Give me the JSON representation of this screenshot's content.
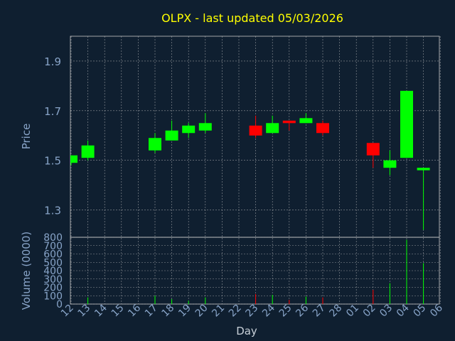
{
  "chart_data": {
    "type": "candlestick",
    "title": "OLPX - last updated 05/03/2026",
    "xlabel": "Day",
    "colors": {
      "background": "#0f1f30",
      "grid": "#c8c8c8",
      "axis_text": "#88a4c8",
      "title": "#ffff00",
      "up": "#00ff00",
      "down": "#ff0000"
    },
    "x_ticks": [
      "12",
      "13",
      "14",
      "15",
      "16",
      "17",
      "18",
      "19",
      "20",
      "21",
      "22",
      "23",
      "24",
      "25",
      "26",
      "27",
      "28",
      "01",
      "02",
      "03",
      "04",
      "05",
      "06"
    ],
    "price_panel": {
      "ylabel": "Price",
      "ylim": [
        1.19,
        2.0
      ],
      "y_ticks": [
        "1.3",
        "1.5",
        "1.7",
        "1.9"
      ],
      "candles": [
        {
          "day": "12",
          "open": 1.49,
          "high": 1.52,
          "low": 1.48,
          "close": 1.52
        },
        {
          "day": "13",
          "open": 1.51,
          "high": 1.58,
          "low": 1.5,
          "close": 1.56
        },
        {
          "day": "17",
          "open": 1.54,
          "high": 1.61,
          "low": 1.53,
          "close": 1.59
        },
        {
          "day": "18",
          "open": 1.58,
          "high": 1.66,
          "low": 1.58,
          "close": 1.62
        },
        {
          "day": "19",
          "open": 1.61,
          "high": 1.65,
          "low": 1.59,
          "close": 1.64
        },
        {
          "day": "20",
          "open": 1.62,
          "high": 1.69,
          "low": 1.61,
          "close": 1.65
        },
        {
          "day": "23",
          "open": 1.64,
          "high": 1.68,
          "low": 1.59,
          "close": 1.6
        },
        {
          "day": "24",
          "open": 1.61,
          "high": 1.68,
          "low": 1.61,
          "close": 1.65
        },
        {
          "day": "25",
          "open": 1.66,
          "high": 1.66,
          "low": 1.62,
          "close": 1.65
        },
        {
          "day": "26",
          "open": 1.65,
          "high": 1.69,
          "low": 1.65,
          "close": 1.67
        },
        {
          "day": "27",
          "open": 1.65,
          "high": 1.66,
          "low": 1.6,
          "close": 1.61
        },
        {
          "day": "02",
          "open": 1.57,
          "high": 1.57,
          "low": 1.47,
          "close": 1.52
        },
        {
          "day": "03",
          "open": 1.47,
          "high": 1.54,
          "low": 1.44,
          "close": 1.5
        },
        {
          "day": "04",
          "open": 1.51,
          "high": 1.78,
          "low": 1.51,
          "close": 1.78
        },
        {
          "day": "05",
          "open": 1.46,
          "high": 1.47,
          "low": 1.22,
          "close": 1.47
        }
      ]
    },
    "volume_panel": {
      "ylabel": "Volume (0000)",
      "ylim": [
        0,
        800
      ],
      "y_ticks": [
        "0",
        "100",
        "200",
        "300",
        "400",
        "500",
        "600",
        "700",
        "800"
      ],
      "bars": [
        {
          "day": "13",
          "value": 80,
          "direction": "up"
        },
        {
          "day": "17",
          "value": 100,
          "direction": "up"
        },
        {
          "day": "18",
          "value": 60,
          "direction": "up"
        },
        {
          "day": "19",
          "value": 40,
          "direction": "up"
        },
        {
          "day": "20",
          "value": 80,
          "direction": "up"
        },
        {
          "day": "23",
          "value": 120,
          "direction": "down"
        },
        {
          "day": "24",
          "value": 110,
          "direction": "up"
        },
        {
          "day": "25",
          "value": 50,
          "direction": "down"
        },
        {
          "day": "26",
          "value": 90,
          "direction": "up"
        },
        {
          "day": "27",
          "value": 80,
          "direction": "down"
        },
        {
          "day": "02",
          "value": 170,
          "direction": "down"
        },
        {
          "day": "03",
          "value": 250,
          "direction": "up"
        },
        {
          "day": "04",
          "value": 770,
          "direction": "up"
        },
        {
          "day": "05",
          "value": 490,
          "direction": "up"
        }
      ]
    }
  }
}
